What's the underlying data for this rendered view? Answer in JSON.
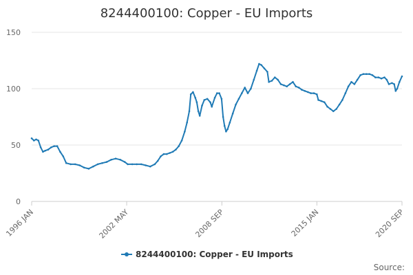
{
  "chart_data": {
    "type": "line",
    "title": "8244400100: Copper - EU Imports",
    "xlabel": "",
    "ylabel": "",
    "ylim": [
      0,
      150
    ],
    "yticks": [
      0,
      50,
      100,
      150
    ],
    "xlim": [
      1996.0,
      2020.67
    ],
    "x_tick_labels": [
      {
        "x": 1996.0,
        "label": "1996 JAN"
      },
      {
        "x": 2002.33,
        "label": "2002 MAY"
      },
      {
        "x": 2008.67,
        "label": "2008 SEP"
      },
      {
        "x": 2015.0,
        "label": "2015 JAN"
      },
      {
        "x": 2020.67,
        "label": "2020 SEP"
      }
    ],
    "grid": true,
    "legend_position": "bottom",
    "source_label": "Source:",
    "colors": {
      "series": "#1f7ab5",
      "grid": "#e6e6e6",
      "axis": "#cccccc"
    },
    "series": [
      {
        "name": "8244400100: Copper - EU Imports",
        "points": [
          [
            1996.0,
            56
          ],
          [
            1996.15,
            54
          ],
          [
            1996.3,
            55
          ],
          [
            1996.45,
            54
          ],
          [
            1996.6,
            48
          ],
          [
            1996.75,
            44
          ],
          [
            1996.9,
            45
          ],
          [
            1997.1,
            46
          ],
          [
            1997.3,
            48
          ],
          [
            1997.5,
            49
          ],
          [
            1997.7,
            49
          ],
          [
            1997.9,
            44
          ],
          [
            1998.1,
            40
          ],
          [
            1998.3,
            34
          ],
          [
            1998.6,
            33
          ],
          [
            1998.9,
            33
          ],
          [
            1999.2,
            32
          ],
          [
            1999.5,
            30
          ],
          [
            1999.8,
            29
          ],
          [
            2000.1,
            31
          ],
          [
            2000.4,
            33
          ],
          [
            2000.7,
            34
          ],
          [
            2001.0,
            35
          ],
          [
            2001.3,
            37
          ],
          [
            2001.6,
            38
          ],
          [
            2001.9,
            37
          ],
          [
            2002.2,
            35
          ],
          [
            2002.4,
            33
          ],
          [
            2002.7,
            33
          ],
          [
            2003.0,
            33
          ],
          [
            2003.3,
            33
          ],
          [
            2003.6,
            32
          ],
          [
            2003.9,
            31
          ],
          [
            2004.2,
            33
          ],
          [
            2004.4,
            36
          ],
          [
            2004.6,
            40
          ],
          [
            2004.8,
            42
          ],
          [
            2005.0,
            42
          ],
          [
            2005.2,
            43
          ],
          [
            2005.4,
            44
          ],
          [
            2005.6,
            46
          ],
          [
            2005.8,
            49
          ],
          [
            2006.0,
            54
          ],
          [
            2006.2,
            62
          ],
          [
            2006.35,
            70
          ],
          [
            2006.5,
            80
          ],
          [
            2006.6,
            95
          ],
          [
            2006.75,
            97
          ],
          [
            2006.9,
            92
          ],
          [
            2007.0,
            88
          ],
          [
            2007.1,
            80
          ],
          [
            2007.2,
            76
          ],
          [
            2007.35,
            85
          ],
          [
            2007.5,
            90
          ],
          [
            2007.7,
            91
          ],
          [
            2007.9,
            88
          ],
          [
            2008.0,
            84
          ],
          [
            2008.2,
            92
          ],
          [
            2008.35,
            96
          ],
          [
            2008.5,
            96
          ],
          [
            2008.65,
            91
          ],
          [
            2008.75,
            75
          ],
          [
            2008.85,
            67
          ],
          [
            2008.95,
            62
          ],
          [
            2009.05,
            64
          ],
          [
            2009.2,
            70
          ],
          [
            2009.4,
            78
          ],
          [
            2009.6,
            86
          ],
          [
            2009.8,
            91
          ],
          [
            2010.0,
            96
          ],
          [
            2010.2,
            101
          ],
          [
            2010.4,
            96
          ],
          [
            2010.6,
            100
          ],
          [
            2010.8,
            108
          ],
          [
            2011.0,
            116
          ],
          [
            2011.15,
            122
          ],
          [
            2011.3,
            121
          ],
          [
            2011.5,
            118
          ],
          [
            2011.7,
            115
          ],
          [
            2011.8,
            106
          ],
          [
            2012.0,
            107
          ],
          [
            2012.2,
            110
          ],
          [
            2012.4,
            108
          ],
          [
            2012.6,
            104
          ],
          [
            2012.8,
            103
          ],
          [
            2013.0,
            102
          ],
          [
            2013.2,
            104
          ],
          [
            2013.4,
            106
          ],
          [
            2013.6,
            102
          ],
          [
            2013.8,
            101
          ],
          [
            2014.0,
            99
          ],
          [
            2014.2,
            98
          ],
          [
            2014.4,
            97
          ],
          [
            2014.6,
            96
          ],
          [
            2014.8,
            96
          ],
          [
            2015.0,
            95
          ],
          [
            2015.1,
            90
          ],
          [
            2015.3,
            89
          ],
          [
            2015.5,
            88
          ],
          [
            2015.7,
            84
          ],
          [
            2015.9,
            82
          ],
          [
            2016.1,
            80
          ],
          [
            2016.3,
            82
          ],
          [
            2016.5,
            86
          ],
          [
            2016.7,
            90
          ],
          [
            2016.9,
            96
          ],
          [
            2017.1,
            102
          ],
          [
            2017.3,
            106
          ],
          [
            2017.5,
            104
          ],
          [
            2017.7,
            108
          ],
          [
            2017.9,
            112
          ],
          [
            2018.1,
            113
          ],
          [
            2018.3,
            113
          ],
          [
            2018.5,
            113
          ],
          [
            2018.7,
            112
          ],
          [
            2018.9,
            110
          ],
          [
            2019.1,
            110
          ],
          [
            2019.3,
            109
          ],
          [
            2019.5,
            110
          ],
          [
            2019.65,
            108
          ],
          [
            2019.8,
            104
          ],
          [
            2020.0,
            105
          ],
          [
            2020.15,
            104
          ],
          [
            2020.25,
            98
          ],
          [
            2020.35,
            100
          ],
          [
            2020.5,
            106
          ],
          [
            2020.67,
            111
          ]
        ]
      }
    ]
  }
}
